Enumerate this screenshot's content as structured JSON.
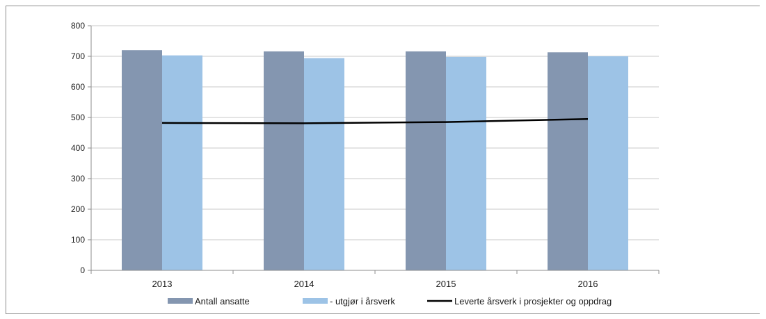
{
  "chart_data": {
    "type": "bar",
    "categories": [
      "2013",
      "2014",
      "2015",
      "2016"
    ],
    "series": [
      {
        "name": "Antall ansatte",
        "kind": "bar",
        "color": "#8496b0",
        "values": [
          720,
          716,
          716,
          713
        ]
      },
      {
        "name": "- utgjør i årsverk",
        "kind": "bar",
        "color": "#9dc3e6",
        "values": [
          703,
          694,
          698,
          700
        ]
      },
      {
        "name": "Leverte årsverk i prosjekter og oppdrag",
        "kind": "line",
        "color": "#000000",
        "values": [
          482,
          481,
          485,
          495
        ]
      }
    ],
    "ylim": [
      0,
      800
    ],
    "yticks": [
      0,
      100,
      200,
      300,
      400,
      500,
      600,
      700,
      800
    ],
    "grid": true,
    "legend_position": "bottom"
  }
}
